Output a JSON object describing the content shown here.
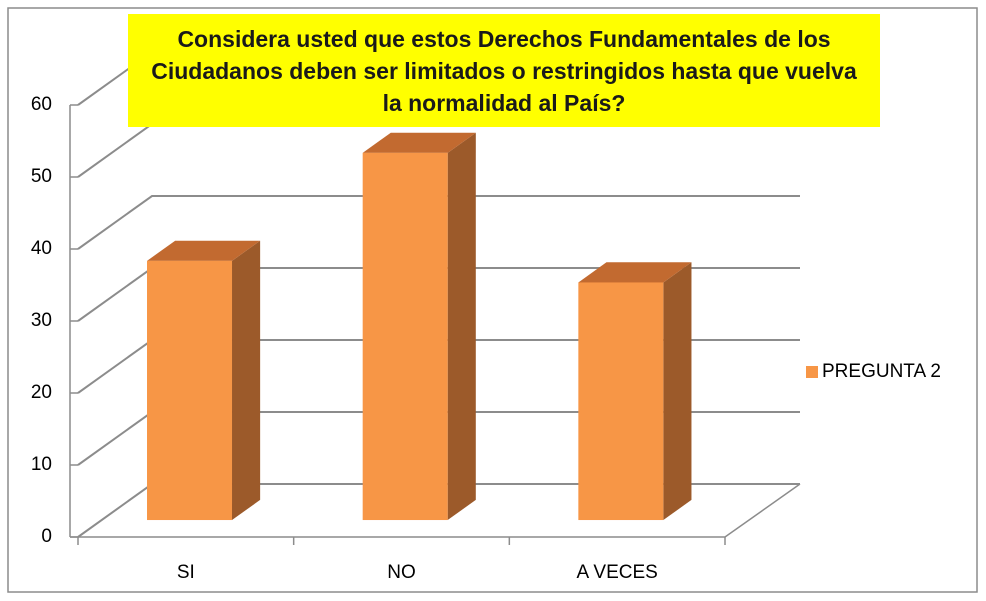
{
  "chart_data": {
    "type": "bar3d",
    "title": "Considera usted que estos Derechos Fundamentales de los Ciudadanos deben ser limitados o restringidos hasta que vuelva la normalidad al País?",
    "categories": [
      "SI",
      "NO",
      "A VECES"
    ],
    "series": [
      {
        "name": "PREGUNTA 2",
        "color": "#f79646",
        "values": [
          36,
          51,
          33
        ]
      }
    ],
    "ylim": [
      0,
      60
    ],
    "yticks": [
      0,
      10,
      20,
      30,
      40,
      50,
      60
    ],
    "grid": true,
    "legend": "right"
  }
}
